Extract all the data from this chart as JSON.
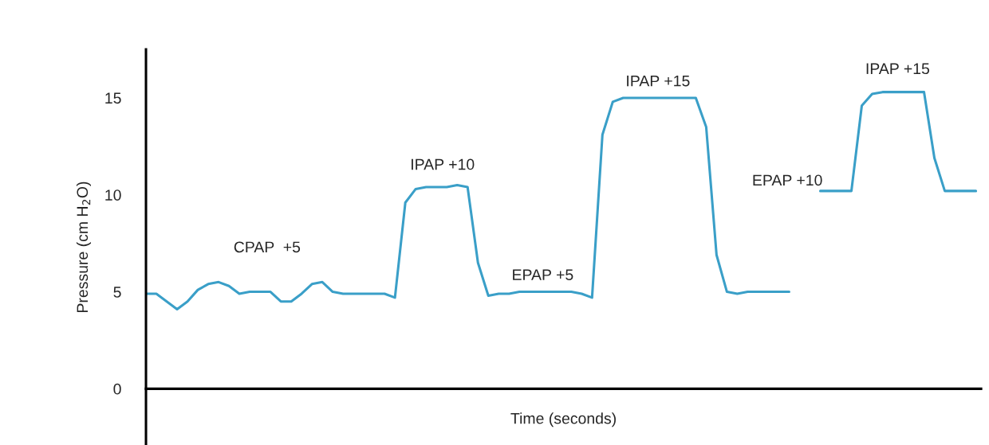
{
  "chart_data": {
    "type": "line",
    "xlabel": "Time (seconds)",
    "ylabel": "Pressure (cm H$_{2}$O)",
    "categories": [
      null,
      null,
      null,
      null,
      null,
      null,
      null,
      null,
      null,
      null,
      null,
      null,
      null,
      null,
      null,
      null,
      null,
      null,
      null,
      null,
      null,
      null,
      null,
      null,
      null,
      null,
      null,
      null,
      null,
      null,
      null,
      null,
      null,
      null,
      null,
      null,
      null,
      null,
      null,
      null,
      null,
      null,
      null,
      null,
      null,
      null,
      null,
      null,
      null,
      null,
      null,
      null,
      null,
      null,
      null,
      null,
      null,
      null,
      null,
      null,
      null,
      null,
      null,
      null,
      null,
      null,
      null,
      null,
      null,
      null,
      null,
      null,
      null,
      null,
      null,
      null,
      null,
      null,
      null,
      null,
      null
    ],
    "series": [
      {
        "color": "#3a9fc8",
        "values": [
          4.9,
          4.9,
          4.5,
          4.1,
          4.5,
          5.1,
          5.4,
          5.5,
          5.3,
          4.9,
          5.0,
          5.0,
          5.0,
          4.5,
          4.5,
          4.9,
          5.4,
          5.5,
          5.0,
          4.9,
          4.9,
          4.9,
          4.9,
          4.9,
          4.7,
          9.6,
          10.3,
          10.4,
          10.4,
          10.4,
          10.5,
          10.4,
          6.5,
          4.8,
          4.9,
          4.9,
          5.0,
          5.0,
          5.0,
          5.0,
          5.0,
          5.0,
          4.9,
          4.7,
          13.1,
          14.8,
          15.0,
          15.0,
          15.0,
          15.0,
          15.0,
          15.0,
          15.0,
          15.0,
          13.5,
          6.9,
          5.0,
          4.9,
          5.0,
          5.0,
          5.0,
          5.0,
          5.0,
          null,
          null,
          null,
          null,
          null,
          null,
          null,
          null,
          null,
          null,
          null,
          null,
          null,
          null,
          null,
          null,
          null,
          null
        ]
      },
      {
        "color": "#3a9fc8",
        "values": [
          null,
          null,
          null,
          null,
          null,
          null,
          null,
          null,
          null,
          null,
          null,
          null,
          null,
          null,
          null,
          null,
          null,
          null,
          null,
          null,
          null,
          null,
          null,
          null,
          null,
          null,
          null,
          null,
          null,
          null,
          null,
          null,
          null,
          null,
          null,
          null,
          null,
          null,
          null,
          null,
          null,
          null,
          null,
          null,
          null,
          null,
          null,
          null,
          null,
          null,
          null,
          null,
          null,
          null,
          null,
          null,
          null,
          null,
          null,
          null,
          null,
          null,
          null,
          null,
          null,
          10.2,
          10.2,
          10.2,
          10.2,
          14.6,
          15.2,
          15.3,
          15.3,
          15.3,
          15.3,
          15.3,
          11.9,
          10.2,
          10.2,
          10.2,
          10.2
        ]
      }
    ],
    "ylim": [
      -2.9,
      17.5
    ],
    "yticks": [
      0,
      5,
      10,
      15
    ],
    "legend": false,
    "annotations": [
      "CPAP  +5",
      "IPAP +10",
      "EPAP +5",
      "IPAP +15",
      "EPAP +10",
      "IPAP +15"
    ]
  }
}
